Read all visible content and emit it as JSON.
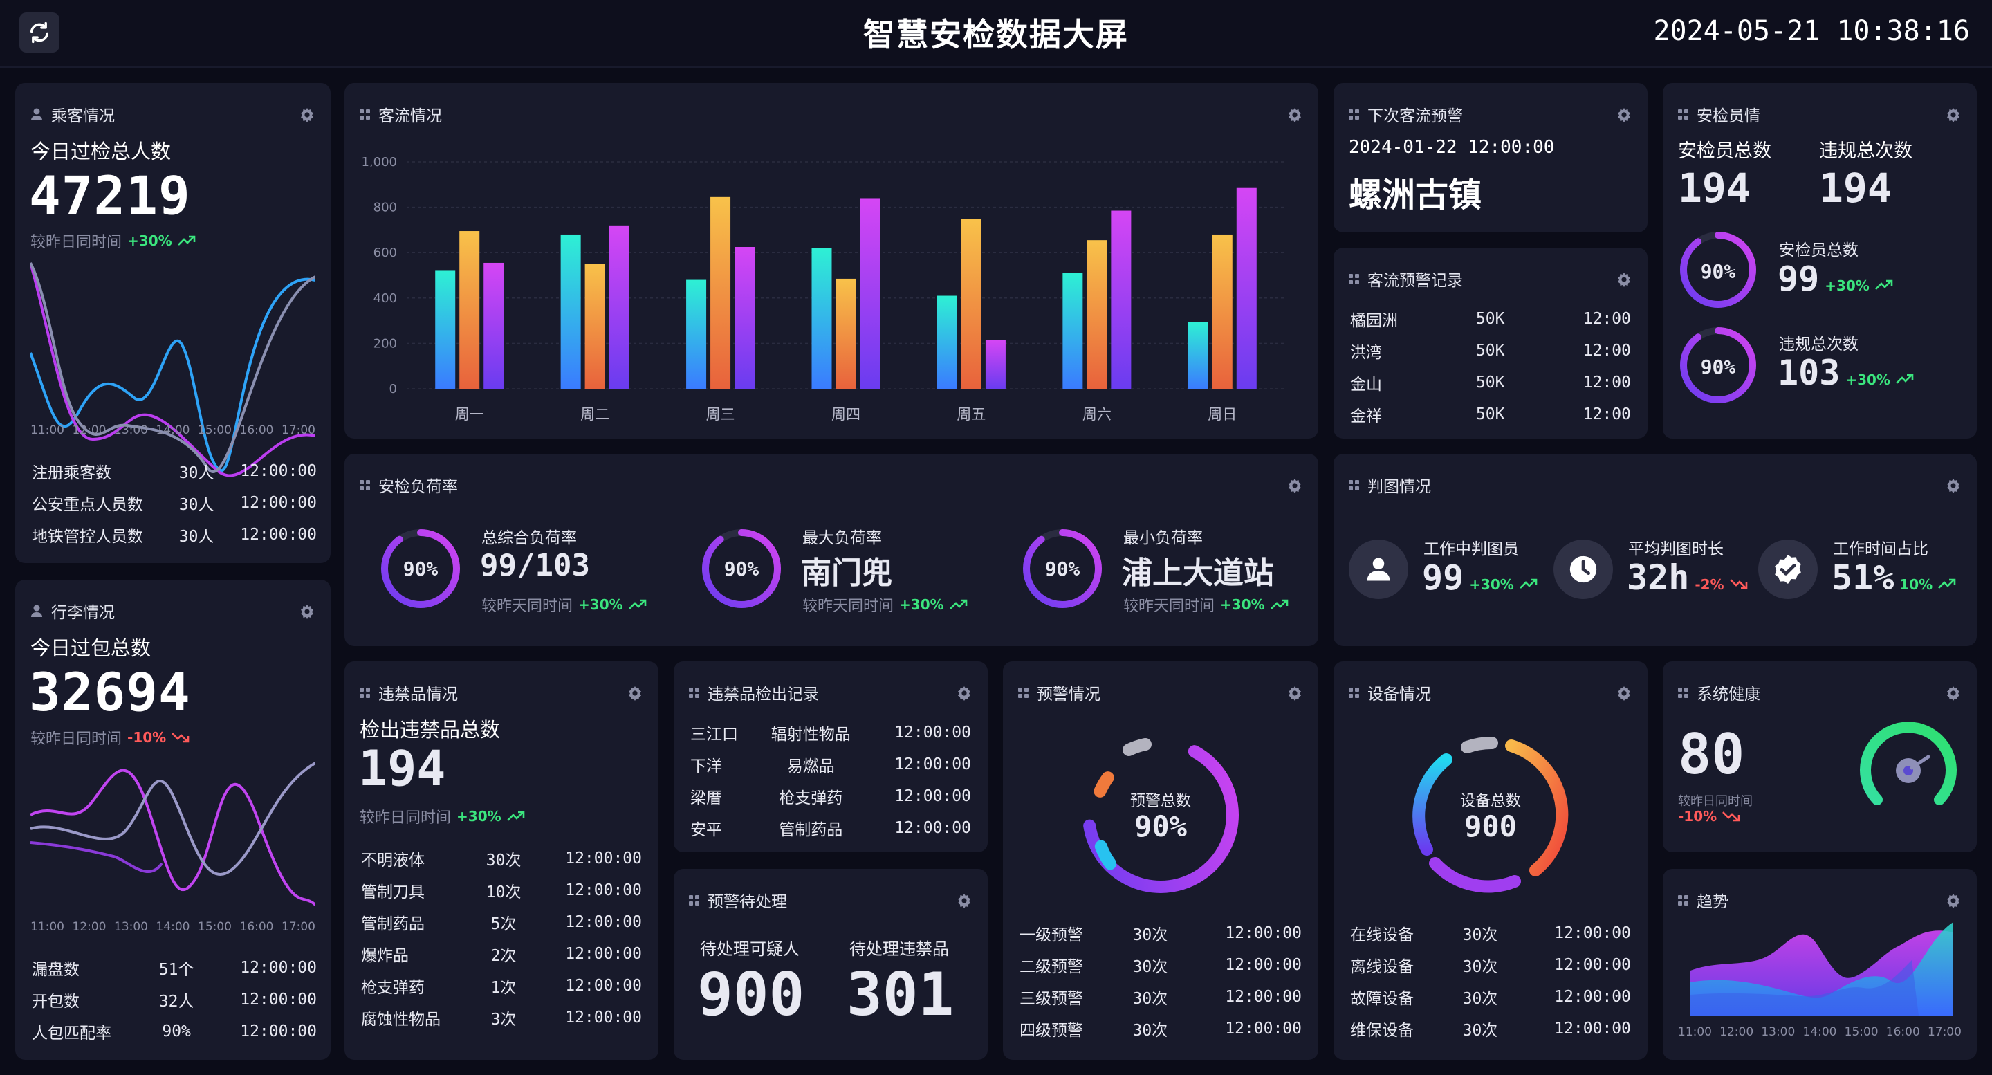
{
  "header": {
    "title": "智慧安检数据大屏",
    "datetime": "2024-05-21 10:38:16"
  },
  "passenger": {
    "title": "乘客情况",
    "today_label": "今日过检总人数",
    "today_value": "47219",
    "compare_label": "较昨日同时间",
    "compare_change": "+30%",
    "times": [
      "11:00",
      "12:00",
      "13:00",
      "14:00",
      "15:00",
      "16:00",
      "17:00"
    ],
    "rows": [
      {
        "name": "注册乘客数",
        "count": "30人",
        "time": "12:00:00"
      },
      {
        "name": "公安重点人员数",
        "count": "30人",
        "time": "12:00:00"
      },
      {
        "name": "地铁管控人员数",
        "count": "30人",
        "time": "12:00:00"
      }
    ]
  },
  "luggage": {
    "title": "行李情况",
    "today_label": "今日过包总数",
    "today_value": "32694",
    "compare_label": "较昨日同时间",
    "compare_change": "-10%",
    "times": [
      "11:00",
      "12:00",
      "13:00",
      "14:00",
      "15:00",
      "16:00",
      "17:00"
    ],
    "rows": [
      {
        "name": "漏盘数",
        "count": "51个",
        "time": "12:00:00"
      },
      {
        "name": "开包数",
        "count": "32人",
        "time": "12:00:00"
      },
      {
        "name": "人包匹配率",
        "count": "90%",
        "time": "12:00:00"
      }
    ]
  },
  "flow": {
    "title": "客流情况",
    "chart_data": {
      "type": "bar",
      "categories": [
        "周一",
        "周二",
        "周三",
        "周四",
        "周五",
        "周六",
        "周日"
      ],
      "ylim": [
        0,
        1000
      ],
      "yticks": [
        "0",
        "200",
        "400",
        "600",
        "800",
        "1,000"
      ],
      "series": [
        {
          "values": [
            520,
            680,
            480,
            620,
            410,
            510,
            295
          ],
          "color": "#2ee6d6"
        },
        {
          "values": [
            695,
            550,
            845,
            485,
            750,
            655,
            680
          ],
          "color": "#f5a93a"
        },
        {
          "values": [
            555,
            720,
            625,
            840,
            215,
            785,
            885
          ],
          "color": "#c94bf5"
        }
      ]
    }
  },
  "next_flow": {
    "title": "下次客流预警",
    "datetime": "2024-01-22 12:00:00",
    "place": "螺洲古镇"
  },
  "flow_record": {
    "title": "客流预警记录",
    "rows": [
      {
        "name": "橘园洲",
        "count": "50K",
        "time": "12:00"
      },
      {
        "name": "洪湾",
        "count": "50K",
        "time": "12:00"
      },
      {
        "name": "金山",
        "count": "50K",
        "time": "12:00"
      },
      {
        "name": "金祥",
        "count": "50K",
        "time": "12:00"
      }
    ]
  },
  "staff": {
    "title": "安检员情",
    "total_label": "安检员总数",
    "total_value": "194",
    "violation_label": "违规总次数",
    "violation_value": "194",
    "ring1": {
      "pct_label": "90%",
      "pct": 0.9,
      "label": "安检员总数",
      "value": "99",
      "change": "+30%"
    },
    "ring2": {
      "pct_label": "90%",
      "pct": 0.9,
      "label": "违规总次数",
      "value": "103",
      "change": "+30%"
    }
  },
  "load": {
    "title": "安检负荷率",
    "items": [
      {
        "pct_label": "90%",
        "pct": 0.9,
        "label": "总综合负荷率",
        "value": "99/103",
        "compare": "较昨天同时间",
        "change": "+30%"
      },
      {
        "pct_label": "90%",
        "pct": 0.9,
        "label": "最大负荷率",
        "value": "南门兜",
        "compare": "较昨天同时间",
        "change": "+30%"
      },
      {
        "pct_label": "90%",
        "pct": 0.9,
        "label": "最小负荷率",
        "value": "浦上大道站",
        "compare": "较昨天同时间",
        "change": "+30%"
      }
    ]
  },
  "judge": {
    "title": "判图情况",
    "items": [
      {
        "label": "工作中判图员",
        "value": "99",
        "change": "+30%",
        "dir": "up"
      },
      {
        "label": "平均判图时长",
        "value": "32h",
        "change": "-2%",
        "dir": "down"
      },
      {
        "label": "工作时间占比",
        "value": "51%",
        "change": "10%",
        "dir": "up"
      }
    ]
  },
  "contraband": {
    "title": "违禁品情况",
    "total_label": "检出违禁品总数",
    "total_value": "194",
    "compare_label": "较昨日同时间",
    "compare_change": "+30%",
    "rows": [
      {
        "name": "不明液体",
        "count": "30次",
        "time": "12:00:00"
      },
      {
        "name": "管制刀具",
        "count": "10次",
        "time": "12:00:00"
      },
      {
        "name": "管制药品",
        "count": "5次",
        "time": "12:00:00"
      },
      {
        "name": "爆炸品",
        "count": "2次",
        "time": "12:00:00"
      },
      {
        "name": "枪支弹药",
        "count": "1次",
        "time": "12:00:00"
      },
      {
        "name": "腐蚀性物品",
        "count": "3次",
        "time": "12:00:00"
      }
    ]
  },
  "detect_record": {
    "title": "违禁品检出记录",
    "rows": [
      {
        "name": "三江口",
        "type": "辐射性物品",
        "time": "12:00:00"
      },
      {
        "name": "下洋",
        "type": "易燃品",
        "time": "12:00:00"
      },
      {
        "name": "梁厝",
        "type": "枪支弹药",
        "time": "12:00:00"
      },
      {
        "name": "安平",
        "type": "管制药品",
        "time": "12:00:00"
      }
    ]
  },
  "pending": {
    "title": "预警待处理",
    "suspect_label": "待处理可疑人",
    "suspect_value": "900",
    "contraband_label": "待处理违禁品",
    "contraband_value": "301"
  },
  "warning": {
    "title": "预警情况",
    "center_label": "预警总数",
    "center_value": "90%",
    "pct": 0.9,
    "rows": [
      {
        "name": "一级预警",
        "count": "30次",
        "time": "12:00:00"
      },
      {
        "name": "二级预警",
        "count": "30次",
        "time": "12:00:00"
      },
      {
        "name": "三级预警",
        "count": "30次",
        "time": "12:00:00"
      },
      {
        "name": "四级预警",
        "count": "30次",
        "time": "12:00:00"
      }
    ]
  },
  "device": {
    "title": "设备情况",
    "center_label": "设备总数",
    "center_value": "900",
    "rows": [
      {
        "name": "在线设备",
        "count": "30次",
        "time": "12:00:00"
      },
      {
        "name": "离线设备",
        "count": "30次",
        "time": "12:00:00"
      },
      {
        "name": "故障设备",
        "count": "30次",
        "time": "12:00:00"
      },
      {
        "name": "维保设备",
        "count": "30次",
        "time": "12:00:00"
      }
    ]
  },
  "health": {
    "title": "系统健康",
    "value": "80",
    "compare_label": "较昨日同时间",
    "compare_change": "-10%"
  },
  "trend": {
    "title": "趋势",
    "times": [
      "11:00",
      "12:00",
      "13:00",
      "14:00",
      "15:00",
      "16:00",
      "17:00"
    ]
  },
  "colors": {
    "up": "#3be57e",
    "down": "#ff5a5a",
    "ring_start": "#6a3cf0",
    "ring_end": "#c040f0"
  }
}
